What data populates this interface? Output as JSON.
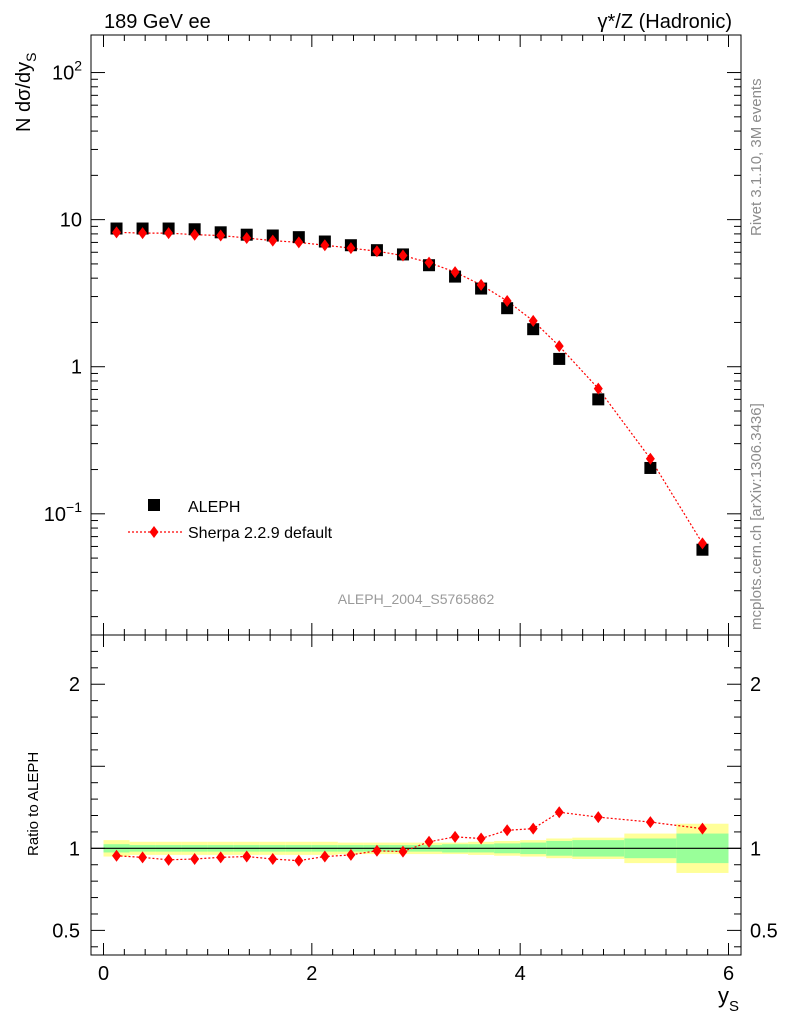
{
  "header": {
    "left_title": "189 GeV ee",
    "right_title": "γ*/Z (Hadronic)"
  },
  "side_labels": {
    "rivet": "Rivet 3.1.10,  3M events",
    "mcplots": "mcplots.cern.ch [arXiv:1306.3436]"
  },
  "analysis_id": "ALEPH_2004_S5765862",
  "colors": {
    "data": "#000000",
    "mc": "#ff0000",
    "band_inner": "#99ff99",
    "band_outer": "#ffff99"
  },
  "chart_data": [
    {
      "type": "scatter",
      "ylabel": "N dσ/dy",
      "ylabel_sub": "S",
      "yscale": "log",
      "ylim": [
        0.015,
        180
      ],
      "xlim": [
        -0.12,
        6.12
      ],
      "y_ticks": [
        {
          "value": 100,
          "base": "10",
          "exp": "2"
        },
        {
          "value": 10,
          "base": "10",
          "exp": ""
        },
        {
          "value": 1,
          "base": "1",
          "exp": ""
        },
        {
          "value": 0.1,
          "base": "10",
          "exp": "−1"
        }
      ],
      "legend_position": "bottom-left",
      "x": [
        0.125,
        0.375,
        0.625,
        0.875,
        1.125,
        1.375,
        1.625,
        1.875,
        2.125,
        2.375,
        2.625,
        2.875,
        3.125,
        3.375,
        3.625,
        3.875,
        4.125,
        4.375,
        4.75,
        5.25,
        5.75
      ],
      "series": [
        {
          "name": "ALEPH",
          "marker": "square",
          "values": [
            8.7,
            8.7,
            8.7,
            8.6,
            8.2,
            7.9,
            7.8,
            7.6,
            7.1,
            6.7,
            6.2,
            5.8,
            4.9,
            4.1,
            3.4,
            2.5,
            1.8,
            1.13,
            0.6,
            0.205,
            0.057
          ]
        },
        {
          "name": "Sherpa 2.2.9 default",
          "marker": "diamond",
          "line": "dotted",
          "values": [
            8.2,
            8.1,
            8.1,
            7.9,
            7.8,
            7.5,
            7.2,
            7.0,
            6.7,
            6.4,
            6.1,
            5.7,
            5.1,
            4.4,
            3.6,
            2.8,
            2.05,
            1.38,
            0.71,
            0.237,
            0.063
          ]
        }
      ]
    },
    {
      "type": "line",
      "ylabel": "Ratio to ALEPH",
      "ylim": [
        0.35,
        2.3
      ],
      "xlim": [
        -0.12,
        6.12
      ],
      "xlabel": "y",
      "xlabel_sub": "S",
      "y_ticks": [
        0.5,
        1,
        2
      ],
      "x_ticks": [
        0,
        2,
        4,
        6
      ],
      "reference_line": 1.0,
      "band_bin_edges": [
        0,
        0.25,
        0.5,
        0.75,
        1.0,
        1.25,
        1.5,
        1.75,
        2.0,
        2.25,
        2.5,
        2.75,
        3.0,
        3.25,
        3.5,
        3.75,
        4.0,
        4.25,
        4.5,
        5.0,
        5.5,
        6.0
      ],
      "band_inner_halfwidth": [
        0.025,
        0.02,
        0.02,
        0.02,
        0.02,
        0.02,
        0.02,
        0.02,
        0.02,
        0.02,
        0.02,
        0.02,
        0.02,
        0.025,
        0.025,
        0.03,
        0.035,
        0.045,
        0.05,
        0.06,
        0.09
      ],
      "band_outer_halfwidth": [
        0.05,
        0.04,
        0.04,
        0.04,
        0.04,
        0.04,
        0.04,
        0.04,
        0.04,
        0.035,
        0.035,
        0.035,
        0.035,
        0.035,
        0.04,
        0.045,
        0.05,
        0.06,
        0.065,
        0.09,
        0.15
      ],
      "series": [
        {
          "name": "Sherpa 2.2.9 default",
          "marker": "diamond",
          "line": "dotted",
          "values": [
            0.955,
            0.945,
            0.93,
            0.935,
            0.945,
            0.95,
            0.935,
            0.925,
            0.95,
            0.96,
            0.985,
            0.98,
            1.04,
            1.07,
            1.06,
            1.11,
            1.12,
            1.22,
            1.19,
            1.16,
            1.12
          ]
        }
      ]
    }
  ]
}
